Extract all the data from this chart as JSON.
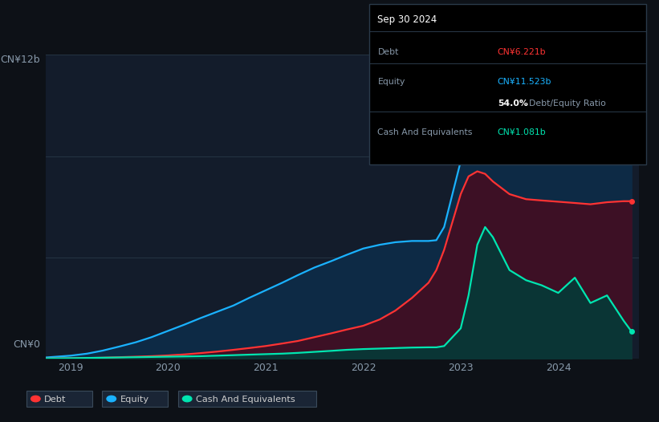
{
  "bg_color": "#0d1117",
  "plot_bg_color": "#131c2b",
  "tooltip": {
    "date": "Sep 30 2024",
    "debt_label": "Debt",
    "debt_value": "CN¥6.221b",
    "equity_label": "Equity",
    "equity_value": "CN¥11.523b",
    "ratio_value": "54.0%",
    "ratio_label": "Debt/Equity Ratio",
    "cash_label": "Cash And Equivalents",
    "cash_value": "CN¥1.081b"
  },
  "ylabel_top": "CN¥12b",
  "ylabel_bottom": "CN¥0",
  "x_ticks": [
    "2019",
    "2020",
    "2021",
    "2022",
    "2023",
    "2024"
  ],
  "legend": [
    "Debt",
    "Equity",
    "Cash And Equivalents"
  ],
  "colors": {
    "debt": "#ff3333",
    "equity": "#1ab2ff",
    "cash": "#00e5b0"
  },
  "fills": {
    "equity": "#0d2a45",
    "debt": "#3d1025",
    "cash": "#0a3535"
  },
  "equity_color_tooltip": "#1ab2ff",
  "debt_color_tooltip": "#ff3333",
  "cash_color_tooltip": "#00e5b0",
  "time": [
    2018.75,
    2019.0,
    2019.17,
    2019.33,
    2019.5,
    2019.67,
    2019.83,
    2020.0,
    2020.17,
    2020.33,
    2020.5,
    2020.67,
    2020.83,
    2021.0,
    2021.17,
    2021.33,
    2021.5,
    2021.67,
    2021.83,
    2022.0,
    2022.17,
    2022.33,
    2022.5,
    2022.67,
    2022.75,
    2022.83,
    2023.0,
    2023.08,
    2023.17,
    2023.25,
    2023.33,
    2023.5,
    2023.67,
    2023.83,
    2024.0,
    2024.17,
    2024.33,
    2024.5,
    2024.67,
    2024.75
  ],
  "equity": [
    0.05,
    0.12,
    0.2,
    0.32,
    0.48,
    0.65,
    0.85,
    1.1,
    1.35,
    1.6,
    1.85,
    2.1,
    2.4,
    2.7,
    3.0,
    3.3,
    3.6,
    3.85,
    4.1,
    4.35,
    4.5,
    4.6,
    4.65,
    4.65,
    4.68,
    5.2,
    7.8,
    9.5,
    11.0,
    11.3,
    11.4,
    11.45,
    11.5,
    11.52,
    11.52,
    11.52,
    11.52,
    11.52,
    11.523,
    11.523
  ],
  "debt": [
    0.01,
    0.02,
    0.03,
    0.04,
    0.06,
    0.08,
    0.1,
    0.13,
    0.17,
    0.22,
    0.28,
    0.35,
    0.42,
    0.5,
    0.6,
    0.7,
    0.85,
    1.0,
    1.15,
    1.3,
    1.55,
    1.9,
    2.4,
    3.0,
    3.5,
    4.3,
    6.5,
    7.2,
    7.4,
    7.3,
    7.0,
    6.5,
    6.3,
    6.25,
    6.2,
    6.15,
    6.1,
    6.18,
    6.221,
    6.221
  ],
  "cash": [
    0.01,
    0.02,
    0.03,
    0.04,
    0.05,
    0.06,
    0.07,
    0.08,
    0.09,
    0.1,
    0.12,
    0.14,
    0.16,
    0.18,
    0.2,
    0.23,
    0.27,
    0.31,
    0.35,
    0.38,
    0.4,
    0.42,
    0.44,
    0.45,
    0.45,
    0.5,
    1.2,
    2.5,
    4.5,
    5.2,
    4.8,
    3.5,
    3.1,
    2.9,
    2.6,
    3.2,
    2.2,
    2.5,
    1.5,
    1.081
  ],
  "ylim": [
    0,
    12
  ],
  "xlim": [
    2018.75,
    2024.83
  ]
}
